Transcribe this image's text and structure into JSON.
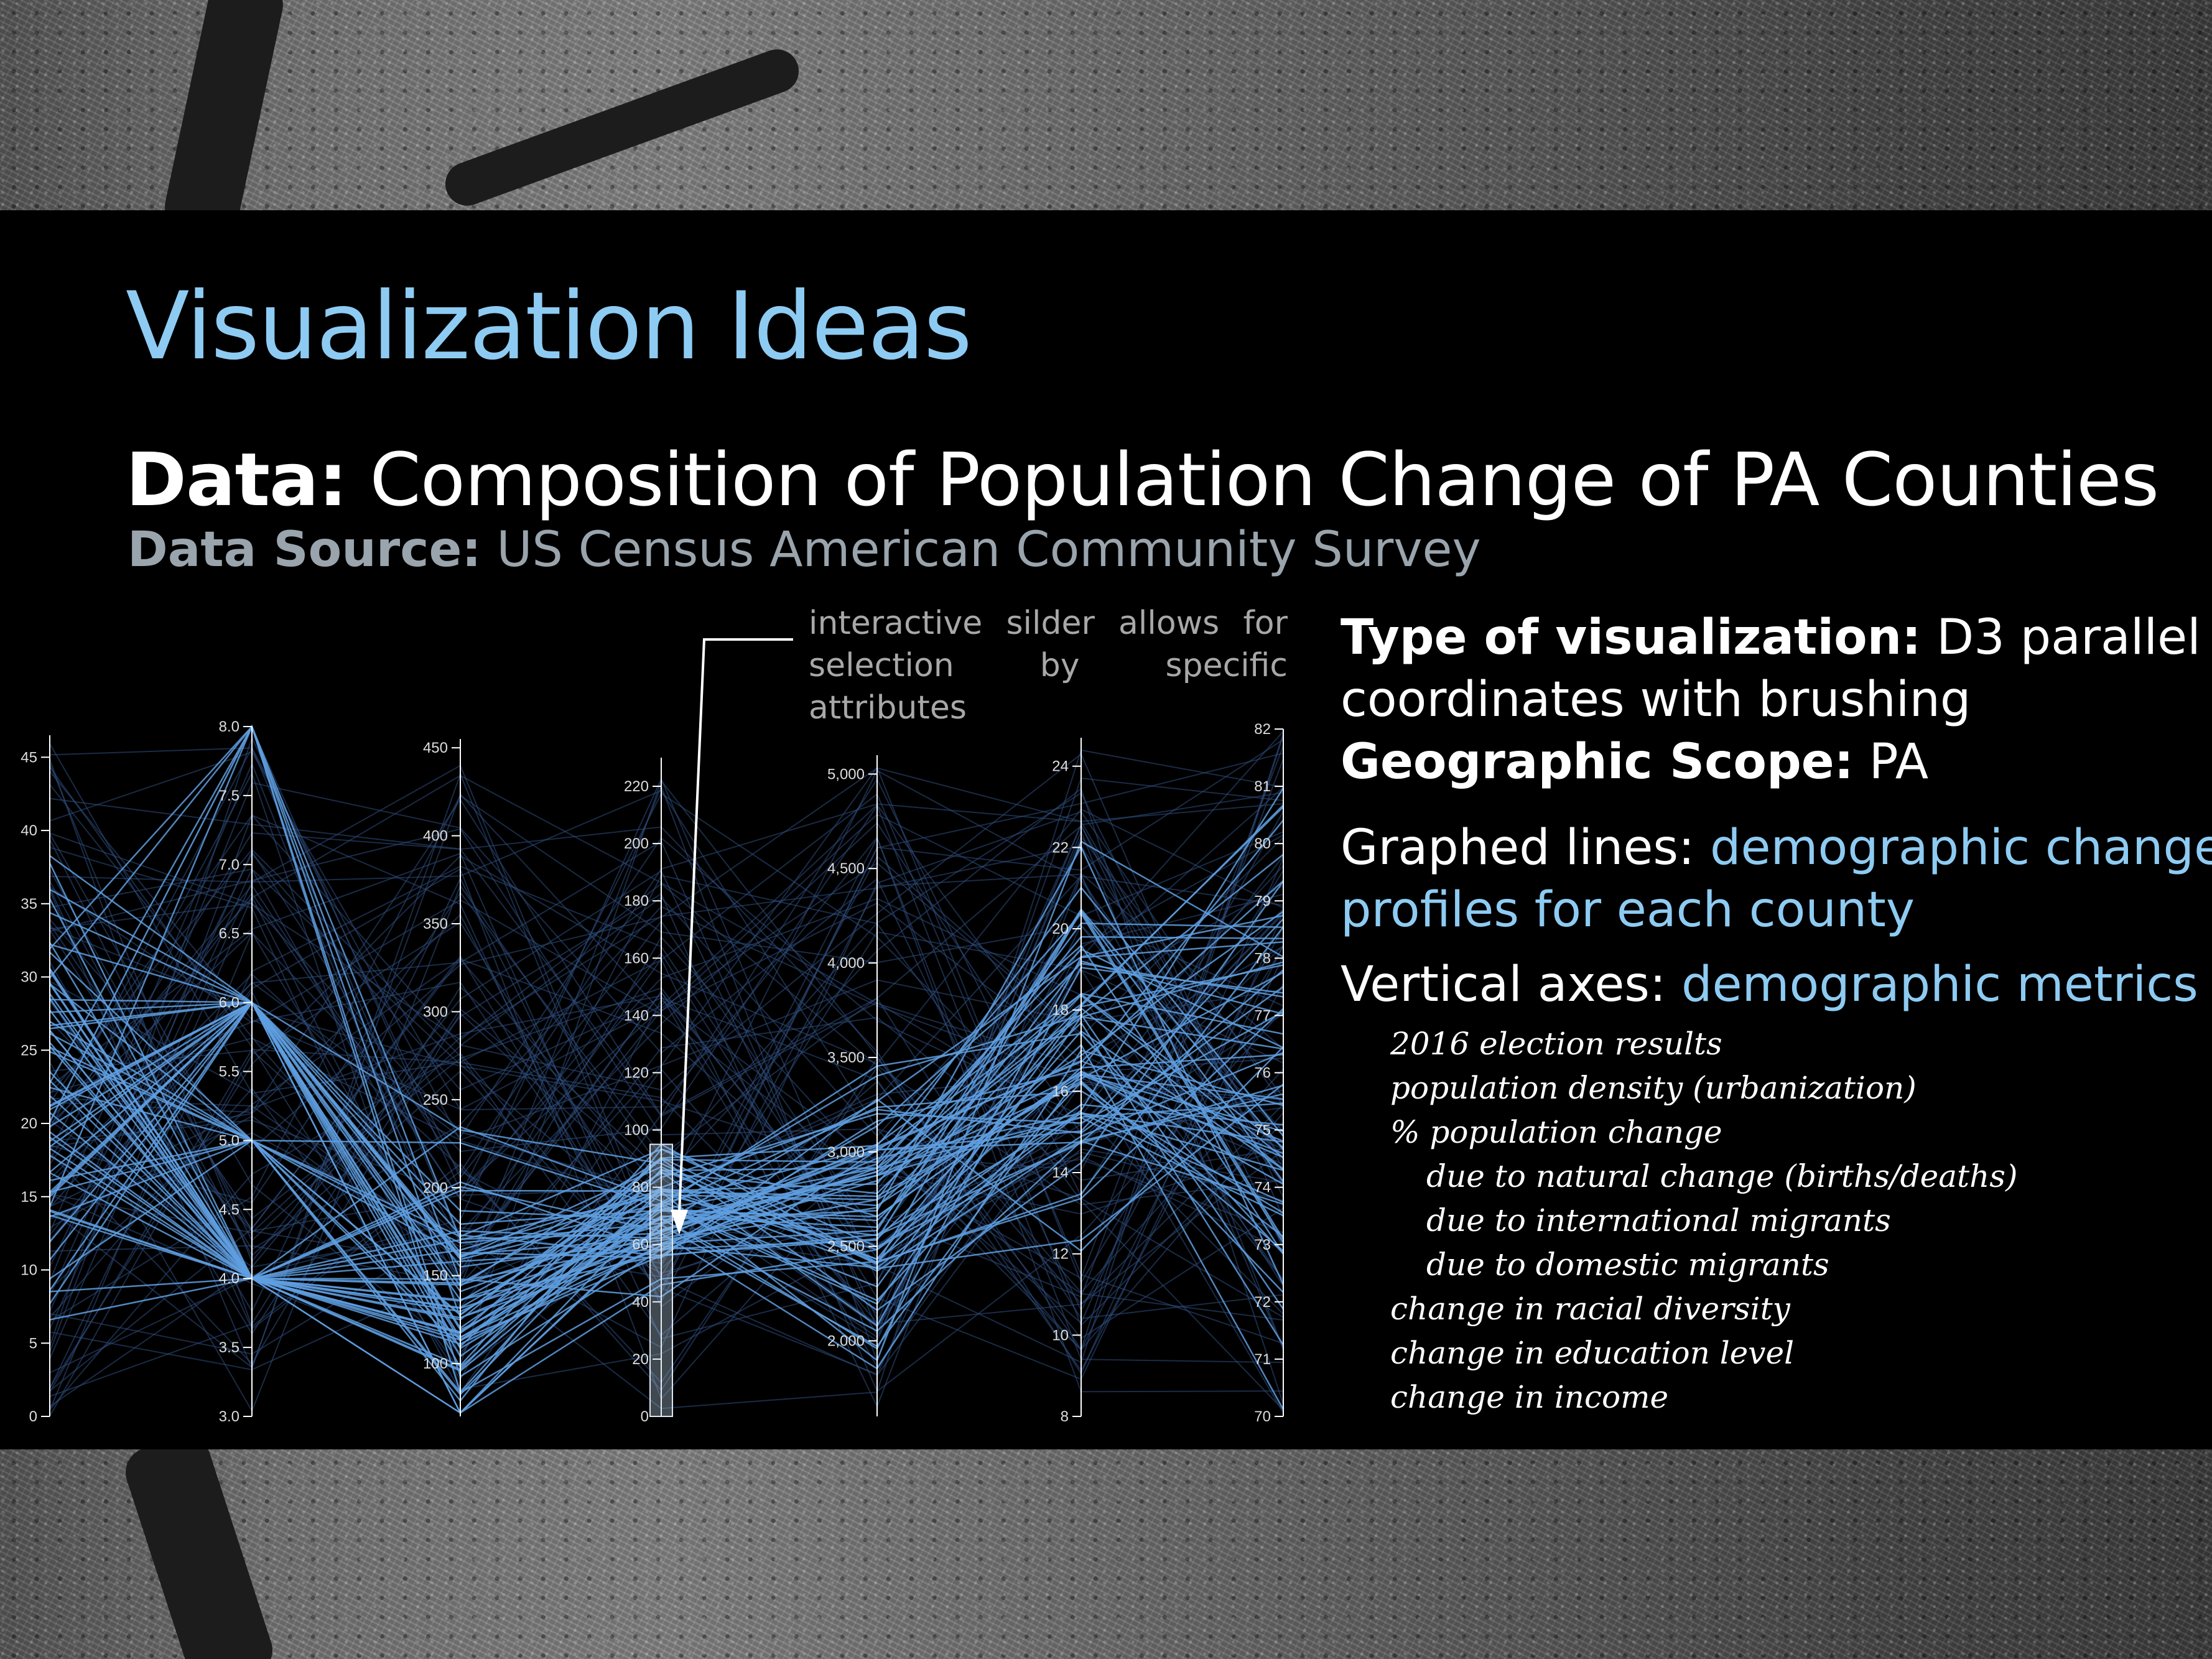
{
  "slide": {
    "title": "Visualization Ideas",
    "data_label": "Data:",
    "data_value": " Composition of Population Change of PA Counties",
    "source_label": "Data Source:",
    "source_value": " US Census American Community Survey"
  },
  "annotation": {
    "line1": "interactive silder allows for",
    "line2": "selection by specific attributes"
  },
  "details": {
    "type_label": "Type of visualization:",
    "type_value_1": " D3 parallel",
    "type_value_2": "coordinates with brushing",
    "scope_label": "Geographic Scope:",
    "scope_value": " PA",
    "graphed_label": "Graphed lines: ",
    "graphed_value_1": "demographic change",
    "graphed_value_2": "profiles for each county",
    "axes_label": "Vertical axes: ",
    "axes_value": "demographic metrics"
  },
  "metrics": [
    {
      "text": "2016 election results",
      "indent": false
    },
    {
      "text": "population density (urbanization)",
      "indent": false
    },
    {
      "text": "% population change",
      "indent": false
    },
    {
      "text": "due to natural change (births/deaths)",
      "indent": true
    },
    {
      "text": "due to international migrants",
      "indent": true
    },
    {
      "text": "due to domestic migrants",
      "indent": true
    },
    {
      "text": "change in racial diversity",
      "indent": false
    },
    {
      "text": "change in education level",
      "indent": false
    },
    {
      "text": "change in income",
      "indent": false
    }
  ],
  "colors": {
    "title": "#8ecbf2",
    "highlight_line": "#5f9fe0",
    "background_line": "#2f4f7f",
    "axis": "#ffffff",
    "brush": "#b8cde6"
  },
  "chart_data": {
    "type": "parallel-coordinates",
    "axes": [
      {
        "ticks": [
          "0",
          "5",
          "10",
          "15",
          "20",
          "25",
          "30",
          "35",
          "40",
          "45"
        ],
        "range": [
          0,
          46.5
        ]
      },
      {
        "ticks": [
          "3.0",
          "3.5",
          "4.0",
          "4.5",
          "5.0",
          "5.5",
          "6.0",
          "6.5",
          "7.0",
          "7.5",
          "8.0"
        ],
        "range": [
          3,
          8
        ]
      },
      {
        "ticks": [
          "100",
          "150",
          "200",
          "250",
          "300",
          "350",
          "400",
          "450"
        ],
        "range": [
          70,
          455
        ]
      },
      {
        "ticks": [
          "0",
          "20",
          "40",
          "60",
          "80",
          "100",
          "120",
          "140",
          "160",
          "180",
          "200",
          "220"
        ],
        "range": [
          0,
          230
        ],
        "brush": [
          0,
          95
        ]
      },
      {
        "ticks": [
          "2,000",
          "2,500",
          "3,000",
          "3,500",
          "4,000",
          "4,500",
          "5,000"
        ],
        "range": [
          1600,
          5100
        ]
      },
      {
        "ticks": [
          "8",
          "10",
          "12",
          "14",
          "16",
          "18",
          "20",
          "22",
          "24"
        ],
        "range": [
          8,
          24.7
        ]
      },
      {
        "ticks": [
          "70",
          "71",
          "72",
          "73",
          "74",
          "75",
          "76",
          "77",
          "78",
          "79",
          "80",
          "81",
          "82"
        ],
        "range": [
          70,
          82
        ]
      }
    ],
    "line_count_highlighted": 67,
    "line_count_background": 90
  }
}
